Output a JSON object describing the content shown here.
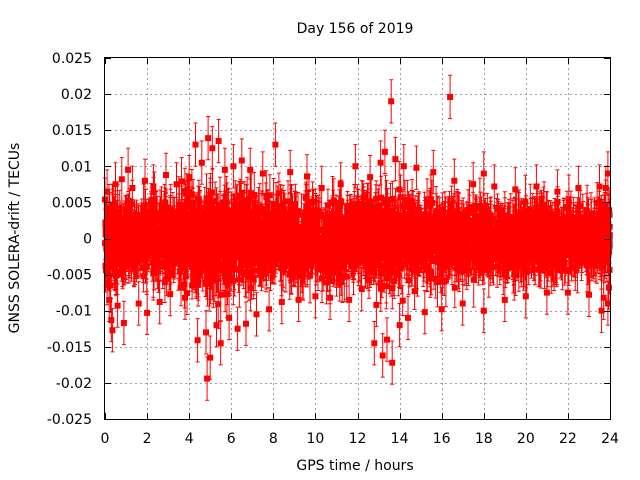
{
  "chart_data": {
    "type": "scatter",
    "title": "Day 156 of 2019",
    "xlabel": "GPS time / hours",
    "ylabel": "GNSS SOLERA-drift / TECUs",
    "xlim": [
      0,
      24
    ],
    "ylim": [
      -0.025,
      0.025
    ],
    "grid": true,
    "color": "#ff0000",
    "x_ticks": [
      0,
      2,
      4,
      6,
      8,
      10,
      12,
      14,
      16,
      18,
      20,
      22,
      24
    ],
    "x_tick_labels": [
      "0",
      "2",
      "4",
      "6",
      "8",
      "10",
      "12",
      "14",
      "16",
      "18",
      "20",
      "22",
      "24"
    ],
    "y_ticks": [
      -0.025,
      -0.02,
      -0.015,
      -0.01,
      -0.005,
      0,
      0.005,
      0.01,
      0.015,
      0.02,
      0.025
    ],
    "y_tick_labels": [
      "-0.025",
      "-0.02",
      "-0.015",
      "-0.01",
      "-0.005",
      "0",
      "0.005",
      "0.01",
      "0.015",
      "0.02",
      "0.025"
    ],
    "series": [
      {
        "name": "SOLERA-drift",
        "error_bar": 0.003,
        "points": [
          [
            0.0,
            0.0054
          ],
          [
            0.1,
            0.0065
          ],
          [
            0.1,
            -0.0062
          ],
          [
            0.2,
            -0.0085
          ],
          [
            0.3,
            -0.0113
          ],
          [
            0.35,
            -0.0127
          ],
          [
            0.5,
            0.0075
          ],
          [
            0.6,
            -0.0093
          ],
          [
            0.8,
            0.0082
          ],
          [
            0.9,
            -0.0117
          ],
          [
            1.1,
            0.0095
          ],
          [
            1.3,
            0.007
          ],
          [
            1.6,
            -0.009
          ],
          [
            1.9,
            0.008
          ],
          [
            2.0,
            -0.0103
          ],
          [
            2.3,
            0.0072
          ],
          [
            2.6,
            -0.0088
          ],
          [
            2.9,
            0.0088
          ],
          [
            3.1,
            -0.0077
          ],
          [
            3.4,
            0.0075
          ],
          [
            3.8,
            -0.0082
          ],
          [
            4.0,
            0.0085
          ],
          [
            4.3,
            0.013
          ],
          [
            4.4,
            -0.0141
          ],
          [
            4.6,
            0.0105
          ],
          [
            4.8,
            -0.013
          ],
          [
            4.85,
            -0.0194
          ],
          [
            4.9,
            0.0139
          ],
          [
            5.0,
            -0.0165
          ],
          [
            5.1,
            0.0125
          ],
          [
            5.3,
            -0.012
          ],
          [
            5.4,
            0.0135
          ],
          [
            5.5,
            -0.0145
          ],
          [
            5.7,
            0.0095
          ],
          [
            5.9,
            -0.011
          ],
          [
            6.1,
            0.01
          ],
          [
            6.3,
            -0.0125
          ],
          [
            6.5,
            0.0108
          ],
          [
            6.7,
            -0.0118
          ],
          [
            6.9,
            0.0095
          ],
          [
            7.2,
            -0.0105
          ],
          [
            7.5,
            0.009
          ],
          [
            7.8,
            -0.0098
          ],
          [
            8.1,
            0.013
          ],
          [
            8.4,
            -0.0088
          ],
          [
            8.8,
            0.0092
          ],
          [
            9.2,
            -0.0085
          ],
          [
            9.6,
            0.0086
          ],
          [
            10.0,
            -0.008
          ],
          [
            10.3,
            0.007
          ],
          [
            10.7,
            -0.0082
          ],
          [
            11.2,
            0.0075
          ],
          [
            11.6,
            -0.0085
          ],
          [
            11.9,
            0.01
          ],
          [
            12.2,
            -0.007
          ],
          [
            12.6,
            0.0085
          ],
          [
            12.8,
            -0.0145
          ],
          [
            12.9,
            -0.0092
          ],
          [
            13.1,
            0.0105
          ],
          [
            13.2,
            -0.0162
          ],
          [
            13.3,
            0.012
          ],
          [
            13.4,
            -0.014
          ],
          [
            13.6,
            0.019
          ],
          [
            13.65,
            -0.0172
          ],
          [
            13.8,
            0.011
          ],
          [
            14.0,
            -0.012
          ],
          [
            14.2,
            0.01
          ],
          [
            14.4,
            -0.011
          ],
          [
            14.8,
            0.0098
          ],
          [
            15.2,
            -0.0102
          ],
          [
            15.6,
            0.0092
          ],
          [
            16.0,
            -0.0098
          ],
          [
            16.4,
            0.0196
          ],
          [
            16.6,
            0.008
          ],
          [
            17.0,
            -0.009
          ],
          [
            17.5,
            0.0075
          ],
          [
            18.0,
            0.009
          ],
          [
            18.0,
            -0.01
          ],
          [
            18.5,
            0.0072
          ],
          [
            19.0,
            -0.0085
          ],
          [
            19.5,
            0.0068
          ],
          [
            20.0,
            -0.008
          ],
          [
            20.5,
            0.0072
          ],
          [
            21.0,
            -0.0075
          ],
          [
            21.5,
            0.0065
          ],
          [
            22.0,
            -0.0075
          ],
          [
            22.5,
            0.007
          ],
          [
            23.0,
            -0.0078
          ],
          [
            23.5,
            0.0072
          ],
          [
            23.6,
            -0.01
          ],
          [
            23.7,
            -0.0082
          ],
          [
            23.8,
            0.007
          ],
          [
            23.9,
            0.009
          ],
          [
            23.95,
            -0.0068
          ],
          [
            23.9,
            -0.009
          ]
        ],
        "dense_band": {
          "segments": [
            {
              "x_range": [
                0,
                3.5
              ],
              "spread": 0.0042
            },
            {
              "x_range": [
                3.5,
                7
              ],
              "spread": 0.0055
            },
            {
              "x_range": [
                7,
                12.5
              ],
              "spread": 0.0043
            },
            {
              "x_range": [
                12.5,
                14.5
              ],
              "spread": 0.0052
            },
            {
              "x_range": [
                14.5,
                17
              ],
              "spread": 0.0043
            },
            {
              "x_range": [
                17,
                24
              ],
              "spread": 0.0036
            }
          ],
          "count": 3400
        }
      }
    ]
  }
}
